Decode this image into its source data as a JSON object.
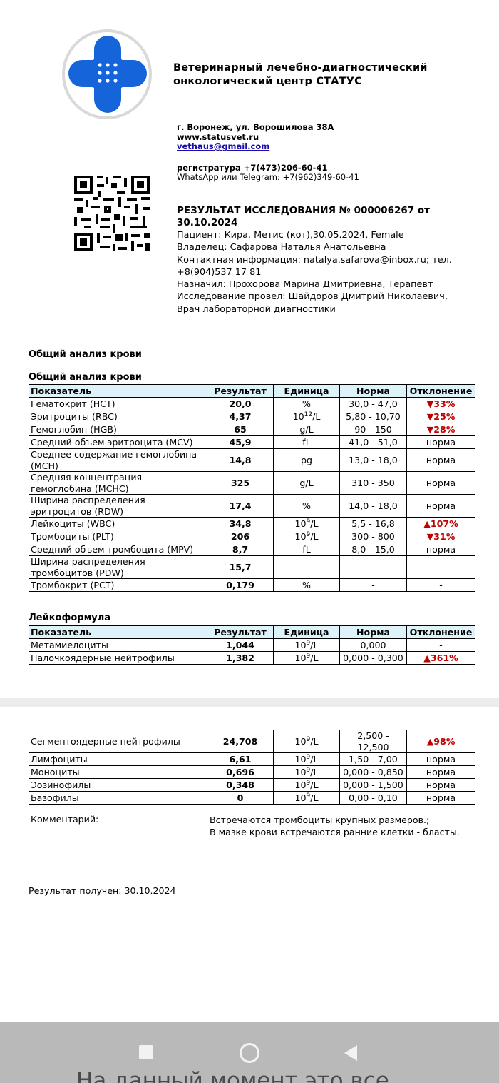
{
  "header": {
    "title_lines": [
      "Ветеринарный лечебно-диагностический",
      "онкологический центр СТАТУС"
    ],
    "address": "г. Воронеж, ул. Ворошилова 38А",
    "website": "www.statusvet.ru",
    "email": "vethaus@gmail.com",
    "registry": "регистратура +7(473)206-60-41",
    "messengers": "WhatsApp или Telegram: +7(962)349-60-41"
  },
  "report": {
    "title_lines": [
      "РЕЗУЛЬТАТ ИССЛЕДОВАНИЯ № 000006267 от",
      "30.10.2024"
    ],
    "lines": [
      "Пациент: Кира, Метис (кот),30.05.2024, Female",
      "Владелец: Сафарова Наталья Анатольевна",
      "Контактная информация: natalya.safarova@inbox.ru; тел.",
      "+8(904)537 17 81",
      "Назначил: Прохорова Марина Дмитриевна, Терапевт",
      "Исследование провел: Шайдоров Дмитрий Николаевич,",
      "Врач лабораторной диагностики"
    ]
  },
  "section_title": "Общий анализ крови",
  "tables": [
    {
      "title": "Общий анализ крови",
      "columns": [
        "Показатель",
        "Результат",
        "Единица",
        "Норма",
        "Отклонение"
      ],
      "rows": [
        {
          "name": "Гематокрит (HCT)",
          "result": "20,0",
          "unit": {
            "text": "%"
          },
          "norm": "30,0 - 47,0",
          "deviation": "▼33%",
          "deviation_color": "#c00000"
        },
        {
          "name": "Эритроциты (RBC)",
          "result": "4,37",
          "unit": {
            "base": "10",
            "sup": "12",
            "rest": "/L"
          },
          "norm": "5,80 - 10,70",
          "deviation": "▼25%",
          "deviation_color": "#c00000"
        },
        {
          "name": "Гемоглобин (HGB)",
          "result": "65",
          "unit": {
            "text": "g/L"
          },
          "norm": "90 - 150",
          "deviation": "▼28%",
          "deviation_color": "#c00000"
        },
        {
          "name": "Средний объем эритроцита (MCV)",
          "result": "45,9",
          "unit": {
            "text": "fL"
          },
          "norm": "41,0 - 51,0",
          "deviation": "норма"
        },
        {
          "name": "Среднее содержание гемоглобина (MCH)",
          "result": "14,8",
          "unit": {
            "text": "pg"
          },
          "norm": "13,0 - 18,0",
          "deviation": "норма"
        },
        {
          "name": "Средняя концентрация гемоглобина (MCHC)",
          "result": "325",
          "unit": {
            "text": "g/L"
          },
          "norm": "310 - 350",
          "deviation": "норма"
        },
        {
          "name": "Ширина распределения эритроцитов (RDW)",
          "result": "17,4",
          "unit": {
            "text": "%"
          },
          "norm": "14,0 - 18,0",
          "deviation": "норма"
        },
        {
          "name": "Лейкоциты (WBC)",
          "result": "34,8",
          "unit": {
            "base": "10",
            "sup": "9",
            "rest": "/L"
          },
          "norm": "5,5 - 16,8",
          "deviation": "▲107%",
          "deviation_color": "#c00000"
        },
        {
          "name": "Тромбоциты (PLT)",
          "result": "206",
          "unit": {
            "base": "10",
            "sup": "9",
            "rest": "/L"
          },
          "norm": "300 - 800",
          "deviation": "▼31%",
          "deviation_color": "#c00000"
        },
        {
          "name": "Средний объем тромбоцита (MPV)",
          "result": "8,7",
          "unit": {
            "text": "fL"
          },
          "norm": "8,0 - 15,0",
          "deviation": "норма"
        },
        {
          "name": "Ширина распределения тромбоцитов (PDW)",
          "result": "15,7",
          "unit": null,
          "norm": "-",
          "deviation": "-"
        },
        {
          "name": "Тромбокрит (PCT)",
          "result": "0,179",
          "unit": {
            "text": "%"
          },
          "norm": "-",
          "deviation": "-"
        }
      ]
    },
    {
      "title": "Лейкоформула",
      "columns": [
        "Показатель",
        "Результат",
        "Единица",
        "Норма",
        "Отклонение"
      ],
      "rows": [
        {
          "name": "Метамиелоциты",
          "result": "1,044",
          "unit": {
            "base": "10",
            "sup": "9",
            "rest": "/L"
          },
          "norm": "0,000",
          "deviation": "-"
        },
        {
          "name": "Палочкоядерные нейтрофилы",
          "result": "1,382",
          "unit": {
            "base": "10",
            "sup": "9",
            "rest": "/L"
          },
          "norm": "0,000 - 0,300",
          "deviation": "▲361%",
          "deviation_color": "#c00000"
        }
      ]
    },
    {
      "rows": [
        {
          "name": "Сегментоядерные нейтрофилы",
          "result": "24,708",
          "unit": {
            "base": "10",
            "sup": "9",
            "rest": "/L"
          },
          "norm": "2,500 - 12,500",
          "deviation": "▲98%",
          "deviation_color": "#c00000"
        },
        {
          "name": "Лимфоциты",
          "result": "6,61",
          "unit": {
            "base": "10",
            "sup": "9",
            "rest": "/L"
          },
          "norm": "1,50 - 7,00",
          "deviation": "норма"
        },
        {
          "name": "Моноциты",
          "result": "0,696",
          "unit": {
            "base": "10",
            "sup": "9",
            "rest": "/L"
          },
          "norm": "0,000 - 0,850",
          "deviation": "норма"
        },
        {
          "name": "Эозинофилы",
          "result": "0,348",
          "unit": {
            "base": "10",
            "sup": "9",
            "rest": "/L"
          },
          "norm": "0,000 - 1,500",
          "deviation": "норма"
        },
        {
          "name": "Базофилы",
          "result": "0",
          "unit": {
            "base": "10",
            "sup": "9",
            "rest": "/L"
          },
          "norm": "0,00 - 0,10",
          "deviation": "норма"
        }
      ]
    }
  ],
  "comment": {
    "label": "Комментарий:",
    "lines": [
      "Встречаются тромбоциты крупных размеров.;",
      "В мазке крови встречаются ранние клетки - бласты."
    ]
  },
  "result_received": "Результат получен: 30.10.2024",
  "next_post_text": "На данный момент это все"
}
